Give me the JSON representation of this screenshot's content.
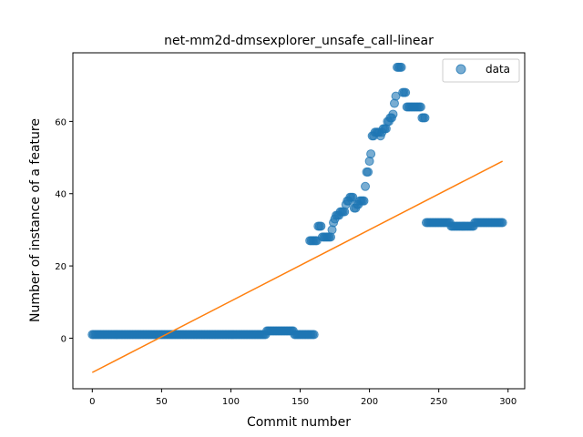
{
  "chart_data": {
    "type": "scatter",
    "title": "net-mm2d-dmsexplorer_unsafe_call-linear",
    "xlabel": "Commit number",
    "ylabel": "Number of instance of a feature",
    "xlim": [
      -14,
      312
    ],
    "ylim": [
      -14,
      79
    ],
    "xticks": [
      0,
      50,
      100,
      150,
      200,
      250,
      300
    ],
    "yticks": [
      0,
      20,
      40,
      60
    ],
    "grid": false,
    "legend": {
      "placement": "top-right",
      "entries": [
        "data"
      ]
    },
    "colors": {
      "scatter": "#1f77b4",
      "fit": "#ff7f0e"
    },
    "segments": [
      {
        "x_start": 0,
        "x_end": 125,
        "y": 1
      },
      {
        "x_start": 126,
        "x_end": 145,
        "y": 2
      },
      {
        "x_start": 146,
        "x_end": 160,
        "y": 1
      },
      {
        "x_start": 241,
        "x_end": 258,
        "y": 32
      },
      {
        "x_start": 259,
        "x_end": 275,
        "y": 31
      },
      {
        "x_start": 276,
        "x_end": 296,
        "y": 32
      }
    ],
    "points": [
      [
        157,
        27
      ],
      [
        158,
        27
      ],
      [
        159,
        27
      ],
      [
        160,
        27
      ],
      [
        161,
        27
      ],
      [
        162,
        27
      ],
      [
        163,
        31
      ],
      [
        164,
        31
      ],
      [
        165,
        31
      ],
      [
        166,
        28
      ],
      [
        167,
        28
      ],
      [
        168,
        28
      ],
      [
        169,
        28
      ],
      [
        170,
        28
      ],
      [
        171,
        28
      ],
      [
        172,
        28
      ],
      [
        173,
        30
      ],
      [
        174,
        32
      ],
      [
        175,
        33
      ],
      [
        176,
        34
      ],
      [
        177,
        34
      ],
      [
        178,
        34
      ],
      [
        179,
        35
      ],
      [
        180,
        35
      ],
      [
        181,
        35
      ],
      [
        182,
        35
      ],
      [
        183,
        37
      ],
      [
        184,
        38
      ],
      [
        185,
        38
      ],
      [
        186,
        39
      ],
      [
        187,
        39
      ],
      [
        188,
        39
      ],
      [
        189,
        36
      ],
      [
        190,
        36
      ],
      [
        191,
        37
      ],
      [
        192,
        37
      ],
      [
        193,
        38
      ],
      [
        194,
        38
      ],
      [
        195,
        38
      ],
      [
        196,
        38
      ],
      [
        197,
        42
      ],
      [
        198,
        46
      ],
      [
        199,
        46
      ],
      [
        200,
        49
      ],
      [
        201,
        51
      ],
      [
        202,
        56
      ],
      [
        203,
        56
      ],
      [
        204,
        57
      ],
      [
        205,
        57
      ],
      [
        206,
        57
      ],
      [
        207,
        57
      ],
      [
        208,
        56
      ],
      [
        209,
        57
      ],
      [
        210,
        58
      ],
      [
        211,
        58
      ],
      [
        212,
        58
      ],
      [
        213,
        60
      ],
      [
        214,
        60
      ],
      [
        215,
        61
      ],
      [
        216,
        61
      ],
      [
        217,
        62
      ],
      [
        218,
        65
      ],
      [
        219,
        67
      ],
      [
        220,
        75
      ],
      [
        221,
        75
      ],
      [
        222,
        75
      ],
      [
        223,
        75
      ],
      [
        224,
        68
      ],
      [
        225,
        68
      ],
      [
        226,
        68
      ],
      [
        227,
        64
      ],
      [
        228,
        64
      ],
      [
        229,
        64
      ],
      [
        230,
        64
      ],
      [
        231,
        64
      ],
      [
        232,
        64
      ],
      [
        233,
        64
      ],
      [
        234,
        64
      ],
      [
        235,
        64
      ],
      [
        236,
        64
      ],
      [
        237,
        64
      ],
      [
        238,
        61
      ],
      [
        239,
        61
      ],
      [
        240,
        61
      ]
    ],
    "fit_line": {
      "x": [
        0,
        296
      ],
      "y": [
        -9.5,
        49
      ]
    }
  }
}
